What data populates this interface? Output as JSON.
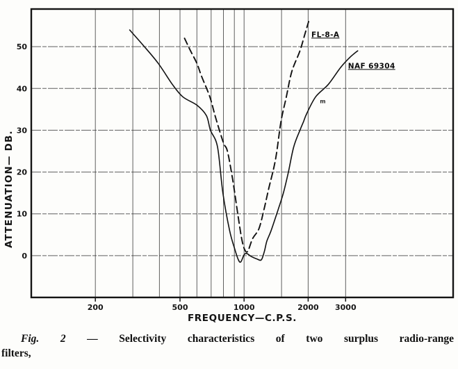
{
  "figure": {
    "caption_fig": "Fig. 2",
    "caption_dash": "—",
    "caption_line1_rest": "Selectivity characteristics of two surplus radio-range",
    "caption_line2": "filters,"
  },
  "chart_data": {
    "type": "line",
    "title": "",
    "xlabel": "FREQUENCY—C.P.S.",
    "ylabel": "ATTENUATION— DB.",
    "x_scale": "log",
    "xlim": [
      100,
      9600
    ],
    "ylim": [
      -10,
      59
    ],
    "grid": true,
    "ink_color": "#111111",
    "x_gridlines": [
      200,
      300,
      400,
      500,
      600,
      700,
      800,
      900,
      1000,
      1500,
      2000,
      3000
    ],
    "x_tick_labels": [
      {
        "value": 200,
        "label": "200"
      },
      {
        "value": 500,
        "label": "500"
      },
      {
        "value": 1000,
        "label": "1000"
      },
      {
        "value": 2000,
        "label": "2000"
      },
      {
        "value": 3000,
        "label": "3000"
      }
    ],
    "y_ticks": [
      {
        "value": 0,
        "label": "0"
      },
      {
        "value": 10,
        "label": "10"
      },
      {
        "value": 20,
        "label": "20"
      },
      {
        "value": 30,
        "label": "30"
      },
      {
        "value": 40,
        "label": "40"
      },
      {
        "value": 50,
        "label": "50"
      }
    ],
    "series": [
      {
        "name": "NAF 69304",
        "slug": "naf-69304",
        "style": "solid",
        "points": [
          [
            290,
            54
          ],
          [
            340,
            50
          ],
          [
            395,
            46
          ],
          [
            460,
            41
          ],
          [
            515,
            38
          ],
          [
            600,
            36
          ],
          [
            665,
            33.5
          ],
          [
            695,
            30
          ],
          [
            750,
            26
          ],
          [
            795,
            15
          ],
          [
            855,
            6
          ],
          [
            905,
            1.5
          ],
          [
            940,
            -1
          ],
          [
            965,
            -1.5
          ],
          [
            1000,
            0.2
          ],
          [
            1030,
            0.5
          ],
          [
            1080,
            -0.2
          ],
          [
            1150,
            -0.8
          ],
          [
            1205,
            -1
          ],
          [
            1245,
            1
          ],
          [
            1280,
            3.5
          ],
          [
            1340,
            6
          ],
          [
            1445,
            11
          ],
          [
            1530,
            15
          ],
          [
            1615,
            20
          ],
          [
            1710,
            26
          ],
          [
            1830,
            30
          ],
          [
            1900,
            32
          ],
          [
            1970,
            34
          ],
          [
            2170,
            38
          ],
          [
            2490,
            41
          ],
          [
            2840,
            45
          ],
          [
            3150,
            47.5
          ],
          [
            3420,
            49
          ]
        ]
      },
      {
        "name": "FL-8-A",
        "slug": "fl-8-a",
        "style": "dashed",
        "points": [
          [
            525,
            52
          ],
          [
            560,
            49
          ],
          [
            600,
            46
          ],
          [
            630,
            43
          ],
          [
            690,
            38
          ],
          [
            735,
            33
          ],
          [
            800,
            27
          ],
          [
            835,
            25
          ],
          [
            885,
            18
          ],
          [
            940,
            9
          ],
          [
            975,
            4
          ],
          [
            1005,
            1.5
          ],
          [
            1040,
            1
          ],
          [
            1095,
            4
          ],
          [
            1175,
            6.5
          ],
          [
            1240,
            11
          ],
          [
            1305,
            16
          ],
          [
            1405,
            23
          ],
          [
            1490,
            32
          ],
          [
            1580,
            38
          ],
          [
            1675,
            44
          ],
          [
            1830,
            49
          ],
          [
            1930,
            53
          ],
          [
            2010,
            56
          ]
        ]
      }
    ],
    "annotations": [
      {
        "text": "FL-8-A",
        "slug": "fl-8-a",
        "x": 2070,
        "y": 52.3,
        "underline": true,
        "artifact": false
      },
      {
        "text": "NAF 69304",
        "slug": "naf-69304",
        "x": 3080,
        "y": 44.8,
        "underline": true,
        "artifact": false
      },
      {
        "text": "m",
        "slug": "m",
        "x": 2270,
        "y": 36.5,
        "underline": false,
        "artifact": true
      }
    ]
  }
}
